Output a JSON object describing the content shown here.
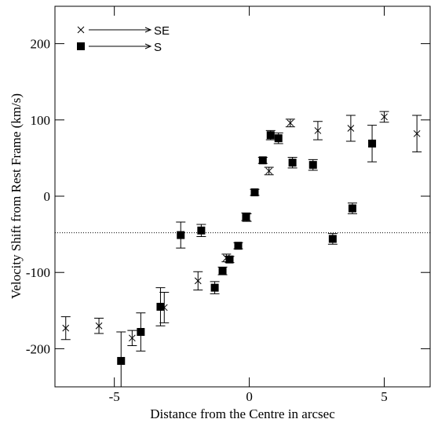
{
  "chart_data": {
    "type": "scatter",
    "x_label": "Distance from the Centre in arcsec",
    "y_label": "Velocity Shift from Rest Frame (km/s)",
    "xlim": [
      -7.2,
      6.7
    ],
    "ylim": [
      -250,
      249
    ],
    "xticks": [
      -5,
      0,
      5
    ],
    "yticks": [
      -200,
      -100,
      0,
      100,
      200
    ],
    "hline": -48,
    "series": [
      {
        "name": "SE",
        "marker": "cross",
        "color": "#000000",
        "x": [
          -6.8,
          -5.57,
          -4.34,
          -3.15,
          -1.9,
          -0.85,
          -0.09,
          0.73,
          1.52,
          2.54,
          3.76,
          5.0,
          6.21
        ],
        "values": [
          -173,
          -170,
          -186,
          -146,
          -111,
          -81,
          -28,
          33,
          96,
          86,
          89,
          104,
          82
        ],
        "errors": [
          15,
          10,
          10,
          20,
          12,
          5,
          5,
          5,
          5,
          12,
          17,
          7,
          24
        ]
      },
      {
        "name": "S",
        "marker": "square",
        "color": "#000000",
        "x": [
          -4.75,
          -4.02,
          -3.29,
          -2.54,
          -1.78,
          -1.28,
          -0.99,
          -0.73,
          -0.41,
          -0.12,
          0.2,
          0.5,
          0.79,
          1.08,
          1.6,
          2.36,
          3.09,
          3.82,
          4.55
        ],
        "values": [
          -216,
          -178,
          -145,
          -51,
          -45,
          -120,
          -98,
          -83,
          -65,
          -27,
          5,
          47,
          80,
          76,
          44,
          41,
          -56,
          -16,
          69
        ],
        "errors": [
          38,
          25,
          25,
          17,
          8,
          8,
          5,
          4,
          4,
          5,
          4,
          4,
          6,
          7,
          7,
          7,
          7,
          7,
          24
        ]
      }
    ]
  }
}
